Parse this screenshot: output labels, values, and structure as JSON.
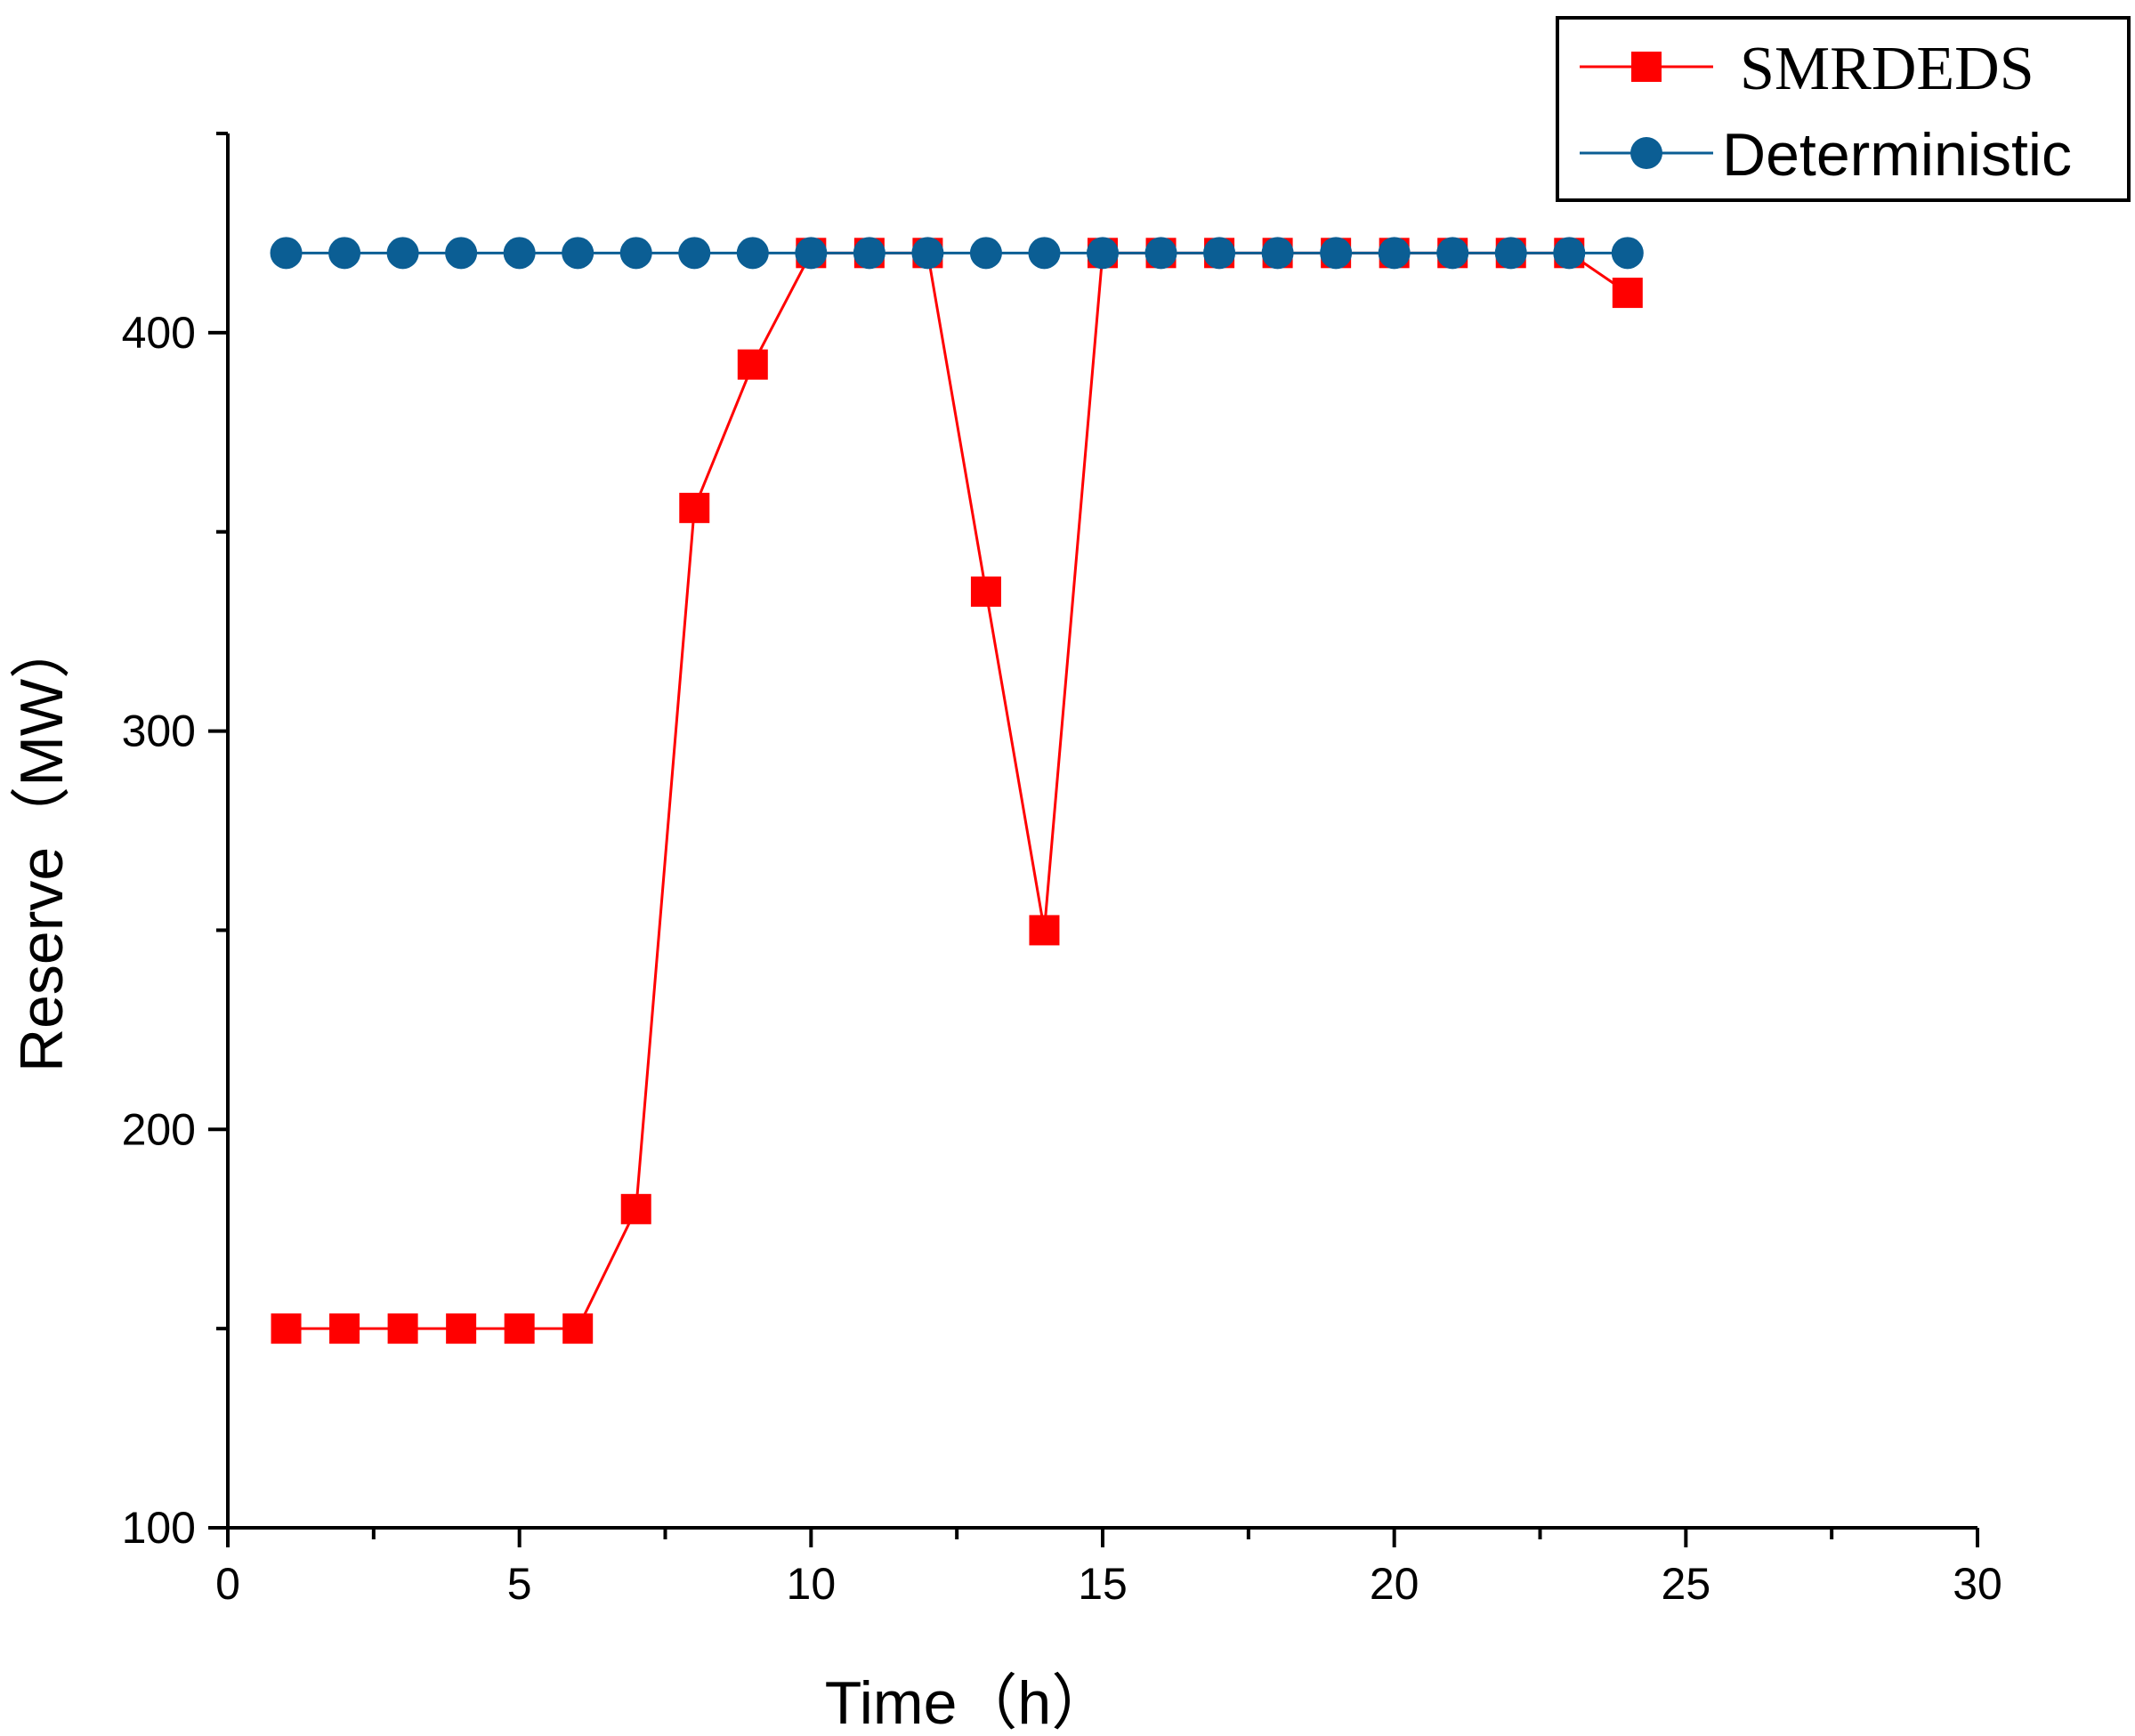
{
  "chart_data": {
    "type": "line",
    "title": "",
    "xlabel": "Time（h）",
    "ylabel": "Reserve（MW）",
    "xlim": [
      0,
      30
    ],
    "ylim": [
      100,
      450
    ],
    "xticks": [
      0,
      5,
      10,
      15,
      20,
      25,
      30
    ],
    "yticks": [
      100,
      200,
      300,
      400
    ],
    "grid": false,
    "legend_position": "top-right",
    "x": [
      1,
      2,
      3,
      4,
      5,
      6,
      7,
      8,
      9,
      10,
      11,
      12,
      13,
      14,
      15,
      16,
      17,
      18,
      19,
      20,
      21,
      22,
      23,
      24
    ],
    "series": [
      {
        "name": "SMRDEDS",
        "color": "#ff0000",
        "marker": "square",
        "values": [
          150,
          150,
          150,
          150,
          150,
          150,
          180,
          356,
          392,
          420,
          420,
          420,
          335,
          250,
          420,
          420,
          420,
          420,
          420,
          420,
          420,
          420,
          420,
          410
        ]
      },
      {
        "name": "Deterministic",
        "color": "#0b5e94",
        "marker": "circle",
        "values": [
          420,
          420,
          420,
          420,
          420,
          420,
          420,
          420,
          420,
          420,
          420,
          420,
          420,
          420,
          420,
          420,
          420,
          420,
          420,
          420,
          420,
          420,
          420,
          420
        ]
      }
    ]
  }
}
